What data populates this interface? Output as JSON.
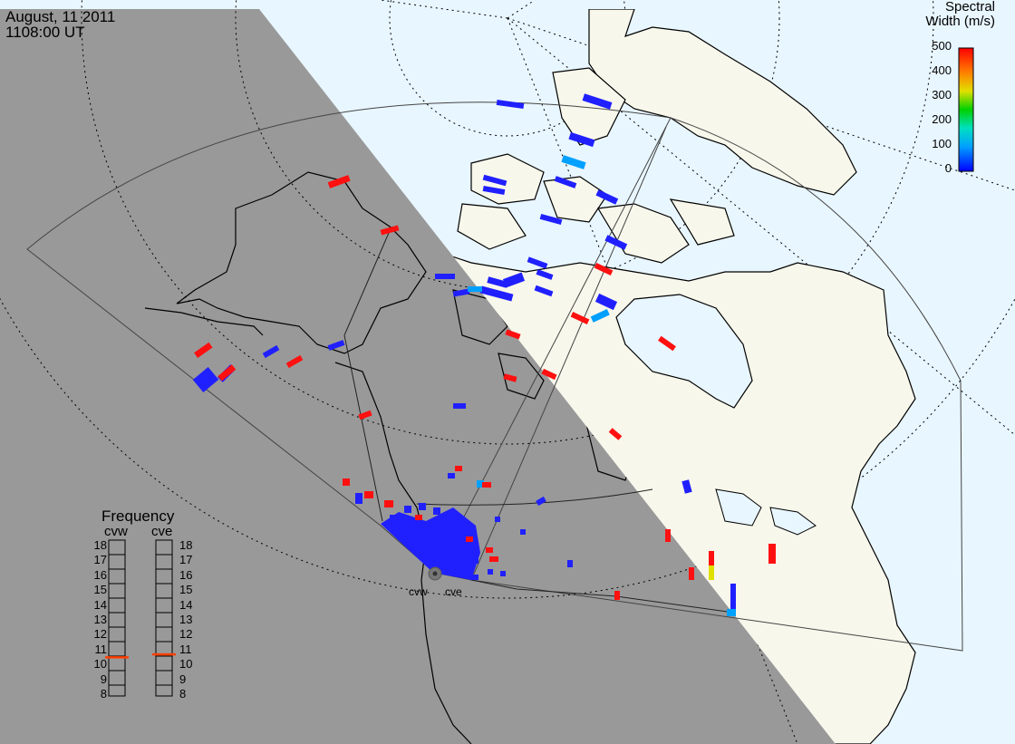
{
  "header": {
    "date": "August, 11 2011",
    "time": "1108:00 UT"
  },
  "colorbar": {
    "title_line1": "Spectral",
    "title_line2": "Width (m/s)",
    "ticks": [
      "500",
      "400",
      "300",
      "200",
      "100",
      "0"
    ],
    "range": [
      0,
      500
    ],
    "colors": [
      "#0000ff",
      "#00a0ff",
      "#00e0c0",
      "#00d000",
      "#e0e000",
      "#ff8000",
      "#ff0000"
    ]
  },
  "frequency_panel": {
    "title": "Frequency",
    "left_label": "cvw",
    "right_label": "cve",
    "scale": [
      "18",
      "17",
      "16",
      "15",
      "14",
      "13",
      "12",
      "11",
      "10",
      "9",
      "8"
    ],
    "cvw_value_mhz": 10.6,
    "cve_value_mhz": 10.8,
    "marker_color": "#ff4000"
  },
  "stations": {
    "west": "cvw",
    "east": "cve"
  },
  "colors": {
    "night": "#999999",
    "ocean_day": "#e8f6ff",
    "land_day": "#f8f7eb",
    "coast": "#000000",
    "grid": "#000000"
  }
}
